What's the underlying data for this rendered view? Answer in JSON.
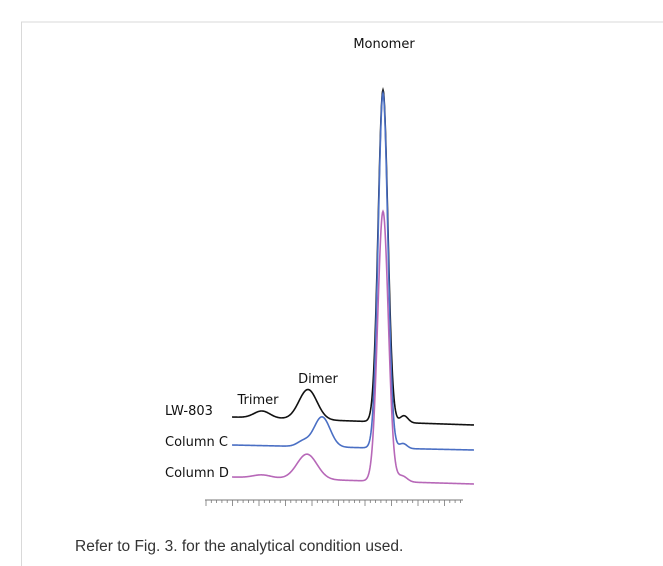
{
  "figure": {
    "peak_labels": {
      "monomer": "Monomer",
      "dimer": "Dimer",
      "trimer": "Trimer"
    },
    "trace_labels": [
      "LW-803",
      "Column C",
      "Column D"
    ],
    "caption": "Refer to Fig. 3. for the analytical condition used."
  }
}
